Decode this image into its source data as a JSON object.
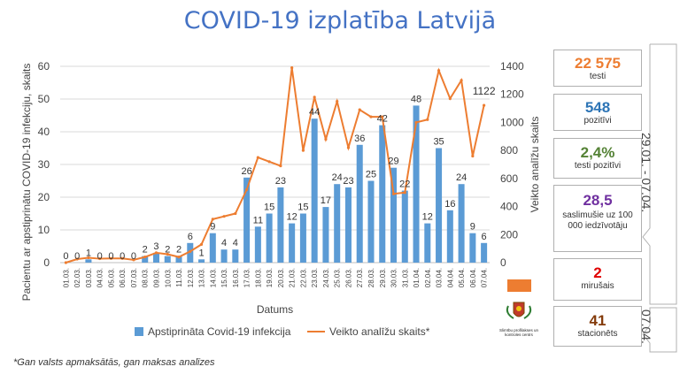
{
  "title": "COVID-19 izplatība Latvijā",
  "chart_data": {
    "type": "bar+line",
    "xlabel": "Datums",
    "ylabel": "Pacientu ar apstiprinātu COVID-19 infekciju, skaits",
    "y2label": "Veikto analīžu skaits",
    "ylim": [
      0,
      60
    ],
    "y2lim": [
      0,
      1400
    ],
    "yticks": [
      "0",
      "10",
      "20",
      "30",
      "40",
      "50",
      "60"
    ],
    "y2ticks": [
      "0",
      "200",
      "400",
      "600",
      "800",
      "1000",
      "1200",
      "1400"
    ],
    "categories": [
      "01.03.",
      "02.03.",
      "03.03.",
      "04.03.",
      "05.03.",
      "06.03.",
      "07.03.",
      "08.03.",
      "09.03.",
      "10.03.",
      "11.03.",
      "12.03.",
      "13.03.",
      "14.03.",
      "15.03.",
      "16.03.",
      "17.03.",
      "18.03.",
      "19.03.",
      "20.03.",
      "21.03.",
      "22.03.",
      "23.03.",
      "24.03.",
      "25.03.",
      "26.03.",
      "27.03.",
      "28.03.",
      "29.03.",
      "30.03.",
      "31.03.",
      "01.04.",
      "02.04.",
      "03.04.",
      "04.04.",
      "05.04.",
      "06.04.",
      "07.04."
    ],
    "series": [
      {
        "name": "Apstiprināta Covid-19 infekcija",
        "type": "bar",
        "color": "#5B9BD5",
        "values": [
          0,
          0,
          1,
          0,
          0,
          0,
          0,
          2,
          3,
          2,
          2,
          6,
          1,
          9,
          4,
          4,
          26,
          11,
          15,
          23,
          12,
          15,
          44,
          17,
          24,
          23,
          36,
          25,
          42,
          29,
          22,
          48,
          12,
          35,
          16,
          24,
          9,
          6
        ]
      },
      {
        "name": "Veikto analīžu skaits*",
        "type": "line",
        "color": "#ED7D31",
        "values": [
          0,
          25,
          35,
          28,
          30,
          30,
          20,
          40,
          70,
          60,
          40,
          80,
          130,
          310,
          330,
          350,
          520,
          750,
          720,
          690,
          1390,
          800,
          1180,
          880,
          1150,
          820,
          1090,
          1040,
          1040,
          490,
          500,
          1000,
          1020,
          1370,
          1170,
          1300,
          760,
          1122
        ]
      }
    ],
    "data_labels_bar": [
      "0",
      "0",
      "1",
      "0",
      "0",
      "0",
      "0",
      "2",
      "3",
      "2",
      "2",
      "6",
      "1",
      "9",
      "4",
      "4",
      "26",
      "11",
      "15",
      "23",
      "12",
      "15",
      "44",
      "17",
      "24",
      "23",
      "36",
      "25",
      "42",
      "29",
      "22",
      "48",
      "12",
      "35",
      "16",
      "24",
      "9",
      "6"
    ],
    "line_end_label": "1122",
    "legend": "bottom"
  },
  "stats": [
    {
      "value": "22 575",
      "label": "testi",
      "color": "#ED7D31"
    },
    {
      "value": "548",
      "label": "pozitīvi",
      "color": "#2E75B6"
    },
    {
      "value": "2,4%",
      "label": "testi pozitīvi",
      "color": "#548235"
    },
    {
      "value": "28,5",
      "label": "saslimušie uz 100 000 iedzīvotāju",
      "color": "#7030A0"
    },
    {
      "value": "2",
      "label": "mirušais",
      "color": "#E00000"
    },
    {
      "value": "41",
      "label": "stacionēts",
      "color": "#843C0C"
    }
  ],
  "side_period": "29.01. - 07.04.",
  "side_date": "07.04.",
  "footnote": "*Gan valsts apmaksātās, gan maksas analīzes",
  "logo_text": "Slimību profilakses un kontroles centrs"
}
